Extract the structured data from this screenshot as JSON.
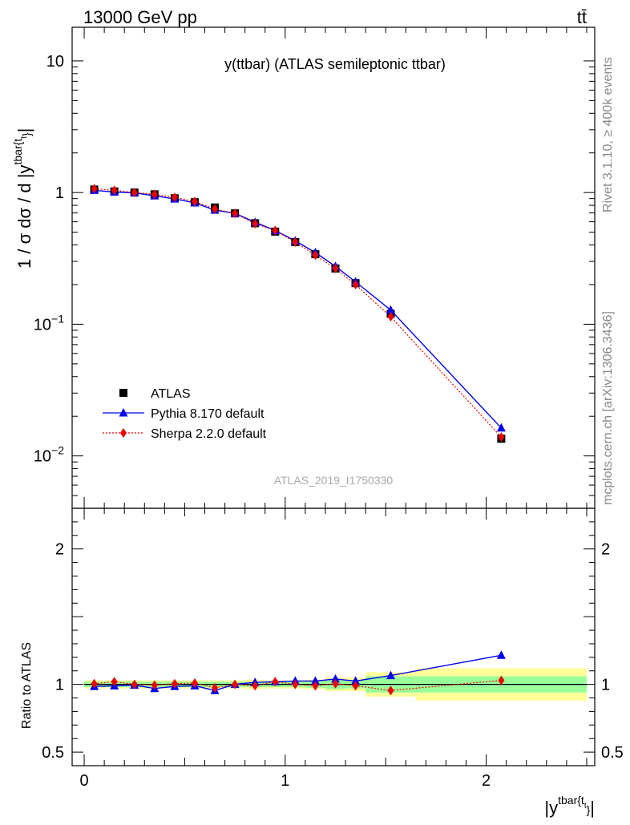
{
  "header": {
    "energy_label": "13000 GeV pp",
    "process_label": "tt̄"
  },
  "side_labels": {
    "rivet": "Rivet 3.1.10, ≥ 400k events",
    "mcplots": "mcplots.cern.ch [arXiv:1306.3436]"
  },
  "colors": {
    "atlas": "#000000",
    "pythia": "#0000ee",
    "sherpa": "#ee0000",
    "band_inner": "#99ff99",
    "band_outer": "#ffff99"
  },
  "chart_data": [
    {
      "type": "line",
      "id": "main",
      "title": "y(ttbar) (ATLAS semileptonic ttbar)",
      "watermark": "ATLAS_2019_I1750330",
      "ylabel": "1 / σ dσ / d |y^{tbar{t}}|",
      "yscale": "log",
      "ylim": [
        0.004,
        18
      ],
      "xlim": [
        -0.06,
        2.54
      ],
      "ytick_labels": [
        {
          "value": 10,
          "base": "10",
          "exp": ""
        },
        {
          "value": 1,
          "base": "1",
          "exp": ""
        },
        {
          "value": 0.1,
          "base": "10",
          "exp": "−1"
        },
        {
          "value": 0.01,
          "base": "10",
          "exp": "−2"
        }
      ],
      "legend_position": "lower-left",
      "x": [
        0.05,
        0.15,
        0.25,
        0.35,
        0.45,
        0.55,
        0.65,
        0.75,
        0.85,
        0.95,
        1.05,
        1.15,
        1.25,
        1.35,
        1.525,
        2.075
      ],
      "series": [
        {
          "name": "ATLAS",
          "marker": "square",
          "values": [
            1.055,
            1.02,
            1.0,
            0.97,
            0.905,
            0.845,
            0.77,
            0.695,
            0.585,
            0.505,
            0.42,
            0.34,
            0.265,
            0.205,
            0.12,
            0.0135
          ]
        },
        {
          "name": "Pythia 8.170 default",
          "marker": "triangle",
          "values": [
            1.04,
            1.01,
            0.995,
            0.945,
            0.895,
            0.835,
            0.735,
            0.695,
            0.595,
            0.515,
            0.43,
            0.35,
            0.275,
            0.21,
            0.128,
            0.0163
          ]
        },
        {
          "name": "Sherpa 2.2.0 default",
          "marker": "diamond",
          "values": [
            1.07,
            1.04,
            1.0,
            0.97,
            0.92,
            0.855,
            0.75,
            0.695,
            0.58,
            0.515,
            0.42,
            0.335,
            0.265,
            0.2,
            0.114,
            0.0139
          ]
        }
      ]
    },
    {
      "type": "line",
      "id": "ratio",
      "xlabel": "|y^{tbar{t}}|",
      "ylabel": "Ratio to ATLAS",
      "ylim": [
        0.4,
        2.3
      ],
      "xlim": [
        -0.06,
        2.54
      ],
      "ytick_labels": [
        {
          "value": 0.5,
          "label": "0.5"
        },
        {
          "value": 1,
          "label": "1"
        },
        {
          "value": 2,
          "label": "2"
        }
      ],
      "xtick_labels": [
        {
          "value": 0,
          "label": "0"
        },
        {
          "value": 1,
          "label": "1"
        },
        {
          "value": 2,
          "label": "2"
        }
      ],
      "x": [
        0.05,
        0.15,
        0.25,
        0.35,
        0.45,
        0.55,
        0.65,
        0.75,
        0.85,
        0.95,
        1.05,
        1.15,
        1.25,
        1.35,
        1.525,
        2.075
      ],
      "bins": [
        [
          0.0,
          0.1
        ],
        [
          0.1,
          0.2
        ],
        [
          0.2,
          0.3
        ],
        [
          0.3,
          0.4
        ],
        [
          0.4,
          0.5
        ],
        [
          0.5,
          0.6
        ],
        [
          0.6,
          0.7
        ],
        [
          0.7,
          0.8
        ],
        [
          0.8,
          0.9
        ],
        [
          0.9,
          1.0
        ],
        [
          1.0,
          1.1
        ],
        [
          1.1,
          1.2
        ],
        [
          1.2,
          1.3
        ],
        [
          1.3,
          1.4
        ],
        [
          1.4,
          1.65
        ],
        [
          1.65,
          2.5
        ]
      ],
      "band_inner": [
        0.02,
        0.02,
        0.02,
        0.02,
        0.02,
        0.02,
        0.02,
        0.02,
        0.02,
        0.02,
        0.02,
        0.025,
        0.035,
        0.03,
        0.06,
        0.06
      ],
      "band_outer": [
        0.03,
        0.03,
        0.03,
        0.03,
        0.03,
        0.03,
        0.03,
        0.03,
        0.035,
        0.03,
        0.03,
        0.035,
        0.05,
        0.05,
        0.09,
        0.12
      ],
      "series": [
        {
          "name": "Pythia 8.170 default",
          "marker": "triangle",
          "values": [
            0.985,
            0.99,
            0.995,
            0.97,
            0.985,
            0.99,
            0.955,
            1.0,
            1.015,
            1.02,
            1.025,
            1.025,
            1.04,
            1.025,
            1.065,
            1.215
          ]
        },
        {
          "name": "Sherpa 2.2.0 default",
          "marker": "diamond",
          "values": [
            1.005,
            1.02,
            1.0,
            0.995,
            1.005,
            1.01,
            0.975,
            1.0,
            0.99,
            1.02,
            1.0,
            0.99,
            1.005,
            0.99,
            0.955,
            1.03
          ]
        }
      ]
    }
  ]
}
